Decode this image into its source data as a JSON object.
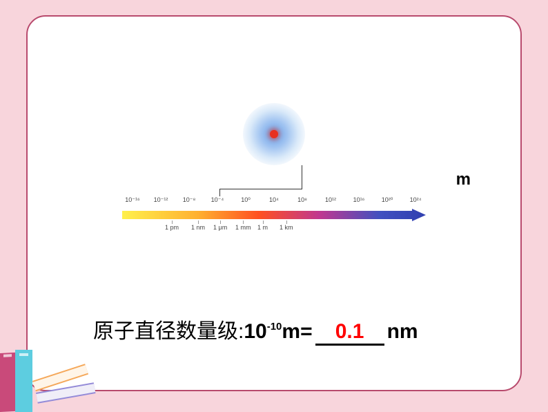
{
  "unit_label": "m",
  "scale": {
    "top_exponents": [
      "10⁻¹⁶",
      "10⁻¹²",
      "10⁻⁸",
      "10⁻⁴",
      "10⁰",
      "10⁴",
      "10⁸",
      "10¹²",
      "10¹⁶",
      "10²⁰",
      "10²⁴"
    ],
    "bottom_units": [
      {
        "text": "1 pm",
        "pos": 62
      },
      {
        "text": "1 nm",
        "pos": 100
      },
      {
        "text": "1 μm",
        "pos": 132
      },
      {
        "text": "1 mm",
        "pos": 164
      },
      {
        "text": "1 m",
        "pos": 196
      },
      {
        "text": "1 km",
        "pos": 228
      }
    ],
    "gradient_colors": [
      "#fff04a",
      "#ffb030",
      "#ff5020",
      "#c03890",
      "#4050c0",
      "#3040b0"
    ],
    "background": "#ffffff"
  },
  "equation": {
    "label": "原子直径数量级: ",
    "base": "10",
    "exponent": "-10",
    "unit_before": "m=",
    "answer": "0.1",
    "unit_after": "nm",
    "answer_color": "#ff0000"
  },
  "books": {
    "colors": [
      "#c94a7a",
      "#5dcde0",
      "#f5a85a",
      "#948bd8"
    ]
  },
  "frame": {
    "border_color": "#b84a6d",
    "background": "#ffffff",
    "page_background": "#f8d5dc"
  }
}
